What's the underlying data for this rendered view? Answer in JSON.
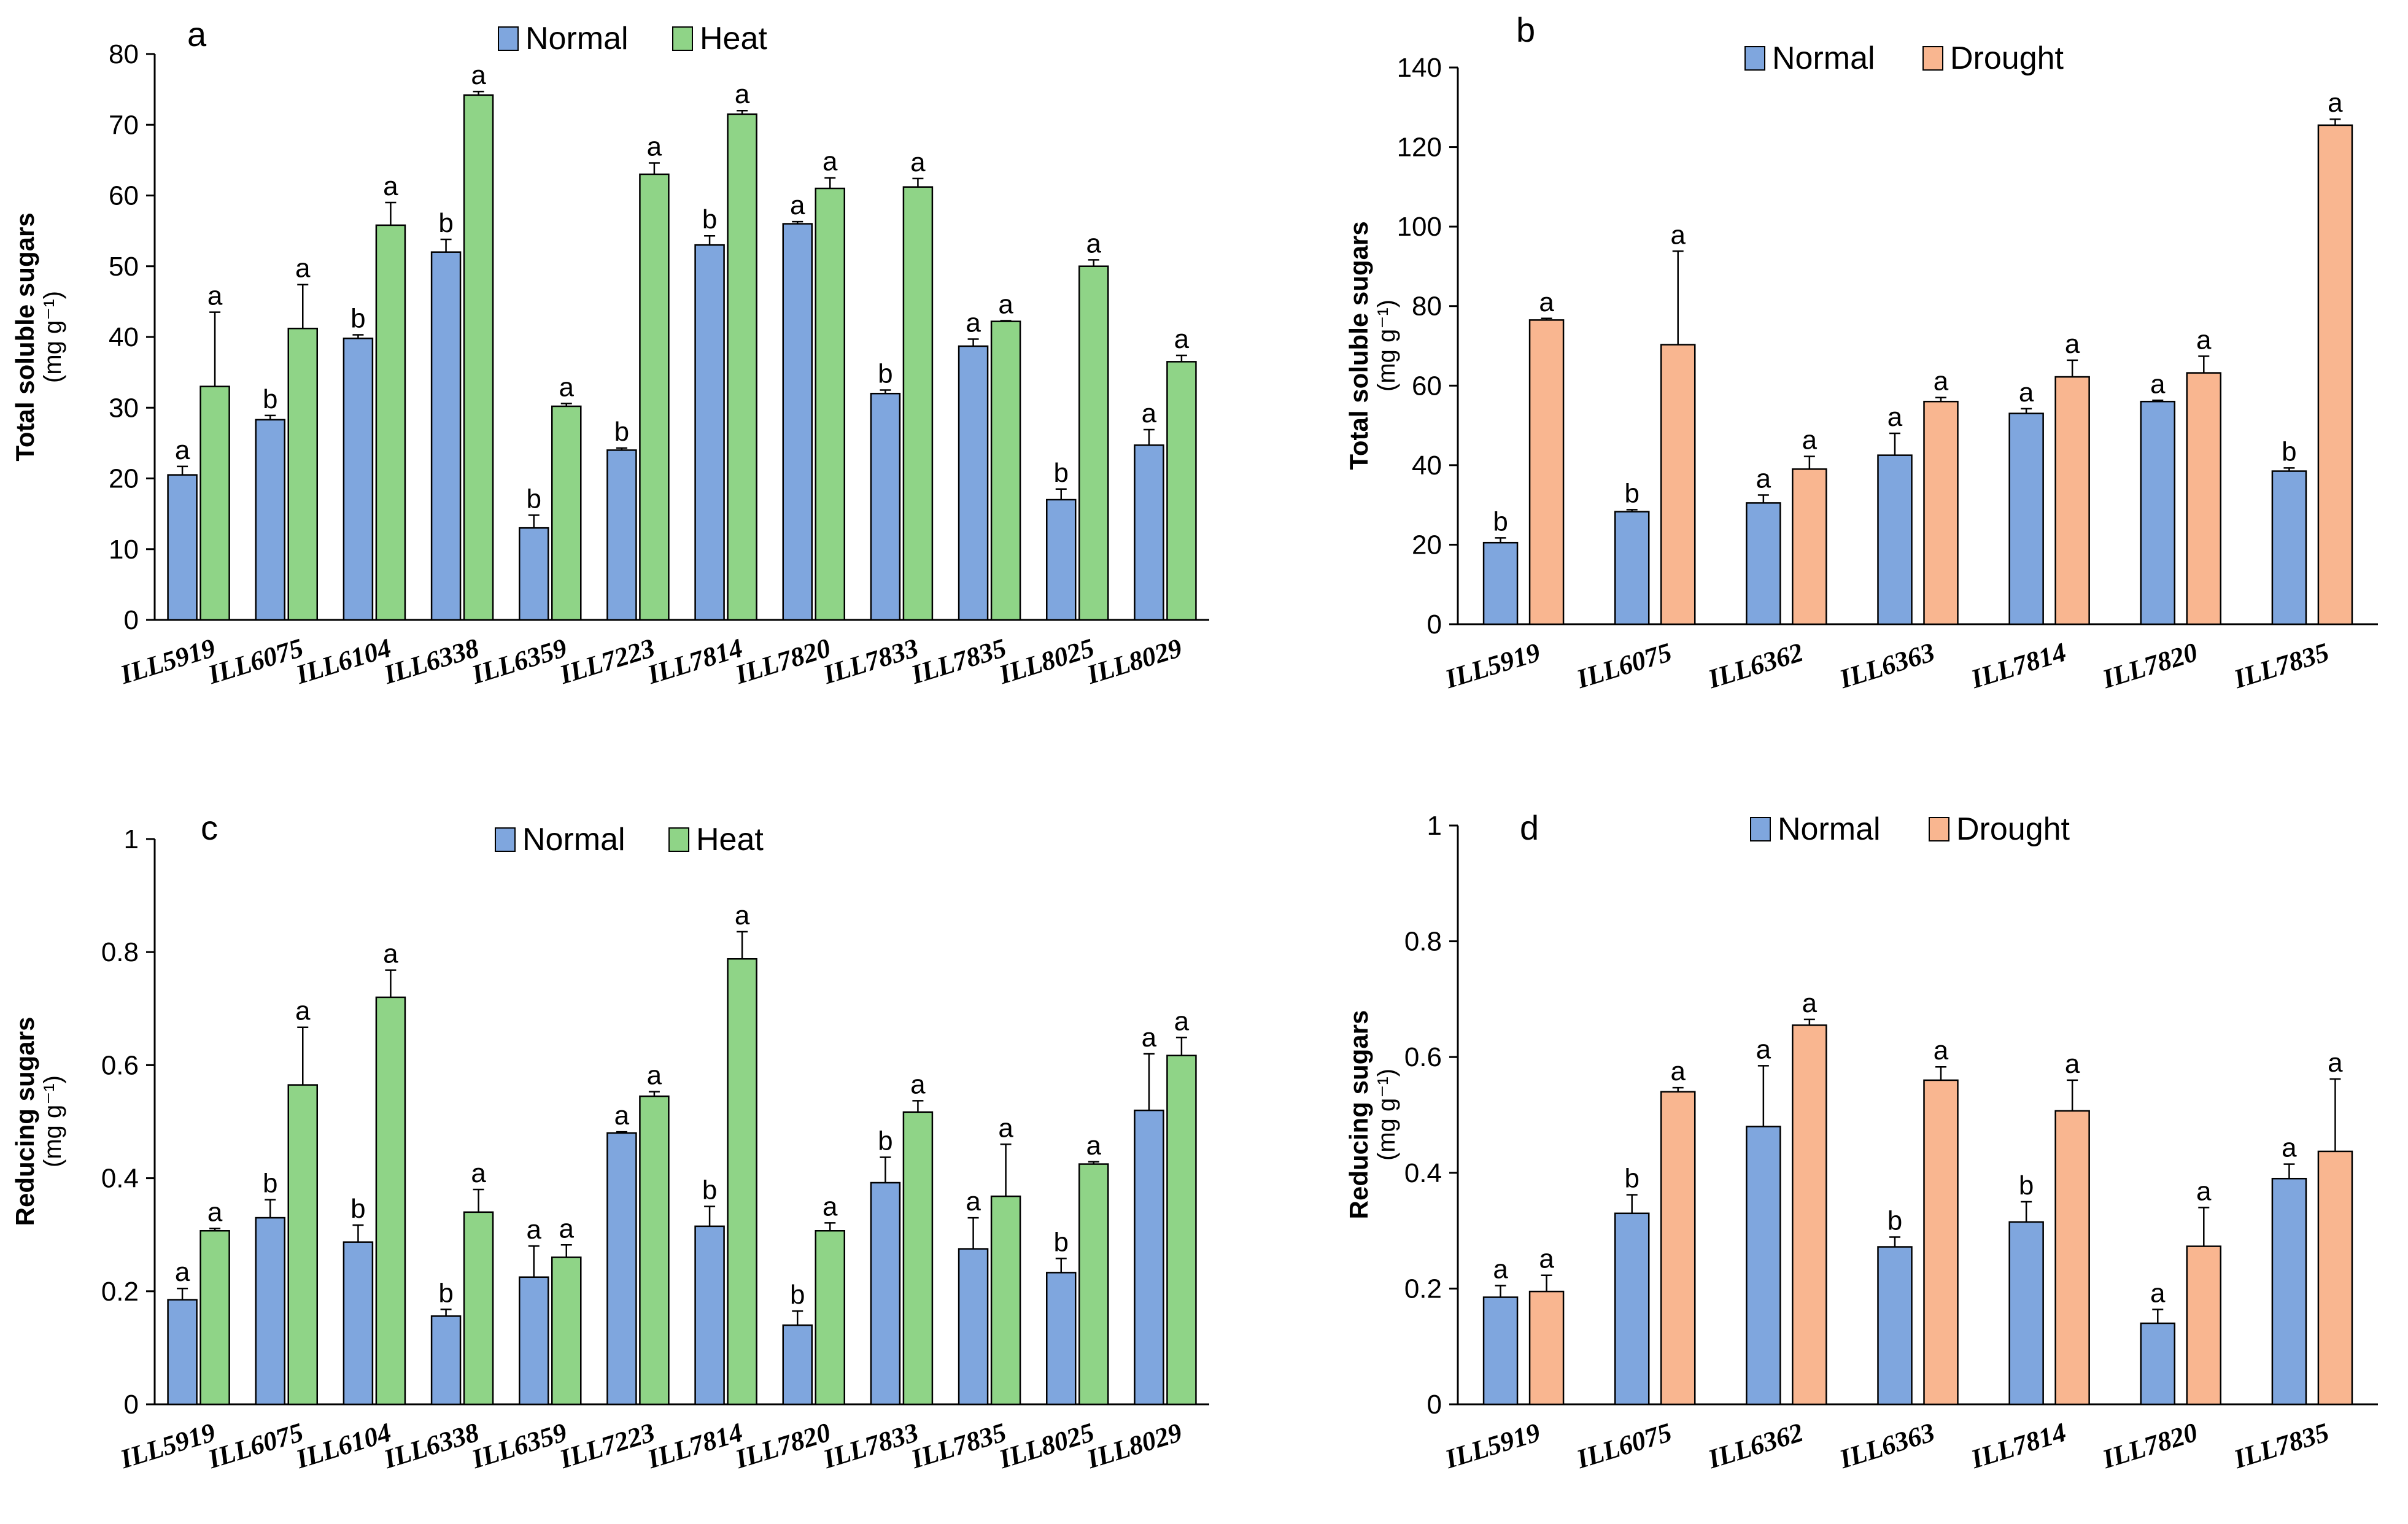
{
  "colors": {
    "normal": "#7FA6DE",
    "heat": "#8FD487",
    "drought": "#F9B690",
    "edge": "#000000"
  },
  "chart_data": [
    {
      "id": "a",
      "panel_label": "a",
      "type": "bar",
      "title": "",
      "ylabel": "Total soluble sugars",
      "yunit": "(mg g⁻¹)",
      "ylim": [
        0,
        80
      ],
      "yticks": [
        "0",
        "10",
        "20",
        "30",
        "40",
        "50",
        "60",
        "70",
        "80"
      ],
      "categories": [
        "ILL5919",
        "ILL6075",
        "ILL6104",
        "ILL6338",
        "ILL6359",
        "ILL7223",
        "ILL7814",
        "ILL7820",
        "ILL7833",
        "ILL7835",
        "ILL8025",
        "ILL8029"
      ],
      "series": [
        {
          "name": "Normal",
          "color_key": "normal",
          "values": [
            20.5,
            28.3,
            39.8,
            52,
            13,
            24,
            53,
            56,
            32,
            38.7,
            17,
            24.7
          ],
          "errors": [
            1.2,
            0.6,
            0.5,
            1.8,
            1.8,
            0.3,
            1.3,
            0.3,
            0.5,
            1.0,
            1.5,
            2.2
          ],
          "letters": [
            "a",
            "b",
            "b",
            "b",
            "b",
            "b",
            "b",
            "a",
            "b",
            "a",
            "b",
            "a"
          ]
        },
        {
          "name": "Heat",
          "color_key": "heat",
          "values": [
            33,
            41.2,
            55.8,
            74.2,
            30.2,
            63,
            71.5,
            61,
            61.2,
            42.2,
            50,
            36.5
          ],
          "errors": [
            10.5,
            6.2,
            3.2,
            0.5,
            0.4,
            1.6,
            0.5,
            1.5,
            1.2,
            0.1,
            0.9,
            0.9
          ],
          "letters": [
            "a",
            "a",
            "a",
            "a",
            "a",
            "a",
            "a",
            "a",
            "a",
            "a",
            "a",
            "a"
          ]
        }
      ],
      "legend": [
        "Normal",
        "Heat"
      ]
    },
    {
      "id": "b",
      "panel_label": "b",
      "type": "bar",
      "title": "",
      "ylabel": "Total soluble sugars",
      "yunit": "(mg g⁻¹)",
      "ylim": [
        0,
        140
      ],
      "yticks": [
        "0",
        "20",
        "40",
        "60",
        "80",
        "100",
        "120",
        "140"
      ],
      "categories": [
        "ILL5919",
        "ILL6075",
        "ILL6362",
        "ILL6363",
        "ILL7814",
        "ILL7820",
        "ILL7835"
      ],
      "series": [
        {
          "name": "Normal",
          "color_key": "normal",
          "values": [
            20.5,
            28.3,
            30.5,
            42.5,
            53,
            56,
            38.5
          ],
          "errors": [
            1.2,
            0.5,
            2.0,
            5.5,
            1.2,
            0.3,
            0.8
          ],
          "letters": [
            "b",
            "b",
            "a",
            "a",
            "a",
            "a",
            "b"
          ]
        },
        {
          "name": "Drought",
          "color_key": "drought",
          "values": [
            76.5,
            70.3,
            39,
            56,
            62.2,
            63.2,
            125.5
          ],
          "errors": [
            0.4,
            23.5,
            3.2,
            1.0,
            4.2,
            4.2,
            1.5
          ],
          "letters": [
            "a",
            "a",
            "a",
            "a",
            "a",
            "a",
            "a"
          ]
        }
      ],
      "legend": [
        "Normal",
        "Drought"
      ]
    },
    {
      "id": "c",
      "panel_label": "c",
      "type": "bar",
      "title": "",
      "ylabel": "Reducing sugars",
      "yunit": "(mg g⁻¹)",
      "ylim": [
        0,
        1
      ],
      "yticks": [
        "0",
        "0.2",
        "0.4",
        "0.6",
        "0.8",
        "1"
      ],
      "categories": [
        "ILL5919",
        "ILL6075",
        "ILL6104",
        "ILL6338",
        "ILL6359",
        "ILL7223",
        "ILL7814",
        "ILL7820",
        "ILL7833",
        "ILL7835",
        "ILL8025",
        "ILL8029"
      ],
      "series": [
        {
          "name": "Normal",
          "color_key": "normal",
          "values": [
            0.185,
            0.33,
            0.287,
            0.156,
            0.225,
            0.48,
            0.315,
            0.14,
            0.392,
            0.275,
            0.233,
            0.52
          ],
          "errors": [
            0.02,
            0.032,
            0.03,
            0.012,
            0.055,
            0.002,
            0.035,
            0.025,
            0.045,
            0.055,
            0.025,
            0.1
          ],
          "letters": [
            "a",
            "b",
            "b",
            "b",
            "a",
            "a",
            "b",
            "b",
            "b",
            "a",
            "b",
            "a"
          ]
        },
        {
          "name": "Heat",
          "color_key": "heat",
          "values": [
            0.307,
            0.565,
            0.72,
            0.34,
            0.26,
            0.545,
            0.788,
            0.307,
            0.517,
            0.368,
            0.425,
            0.617
          ],
          "errors": [
            0.004,
            0.102,
            0.048,
            0.04,
            0.022,
            0.008,
            0.048,
            0.014,
            0.02,
            0.092,
            0.004,
            0.032
          ],
          "letters": [
            "a",
            "a",
            "a",
            "a",
            "a",
            "a",
            "a",
            "a",
            "a",
            "a",
            "a",
            "a"
          ]
        }
      ],
      "legend": [
        "Normal",
        "Heat"
      ]
    },
    {
      "id": "d",
      "panel_label": "d",
      "type": "bar",
      "title": "",
      "ylabel": "Reducing sugars",
      "yunit": "(mg g⁻¹)",
      "ylim": [
        0,
        1
      ],
      "yticks": [
        "0",
        "0.2",
        "0.4",
        "0.6",
        "0.8",
        "1"
      ],
      "categories": [
        "ILL5919",
        "ILL6075",
        "ILL6362",
        "ILL6363",
        "ILL7814",
        "ILL7820",
        "ILL7835"
      ],
      "series": [
        {
          "name": "Normal",
          "color_key": "normal",
          "values": [
            0.185,
            0.33,
            0.48,
            0.272,
            0.315,
            0.14,
            0.39
          ],
          "errors": [
            0.02,
            0.032,
            0.105,
            0.017,
            0.035,
            0.024,
            0.025
          ],
          "letters": [
            "a",
            "b",
            "a",
            "b",
            "b",
            "a",
            "a"
          ]
        },
        {
          "name": "Drought",
          "color_key": "drought",
          "values": [
            0.195,
            0.54,
            0.655,
            0.56,
            0.507,
            0.273,
            0.437
          ],
          "errors": [
            0.028,
            0.007,
            0.01,
            0.023,
            0.053,
            0.067,
            0.125
          ],
          "letters": [
            "a",
            "a",
            "a",
            "a",
            "a",
            "a",
            "a"
          ]
        }
      ],
      "legend": [
        "Normal",
        "Drought"
      ]
    }
  ]
}
